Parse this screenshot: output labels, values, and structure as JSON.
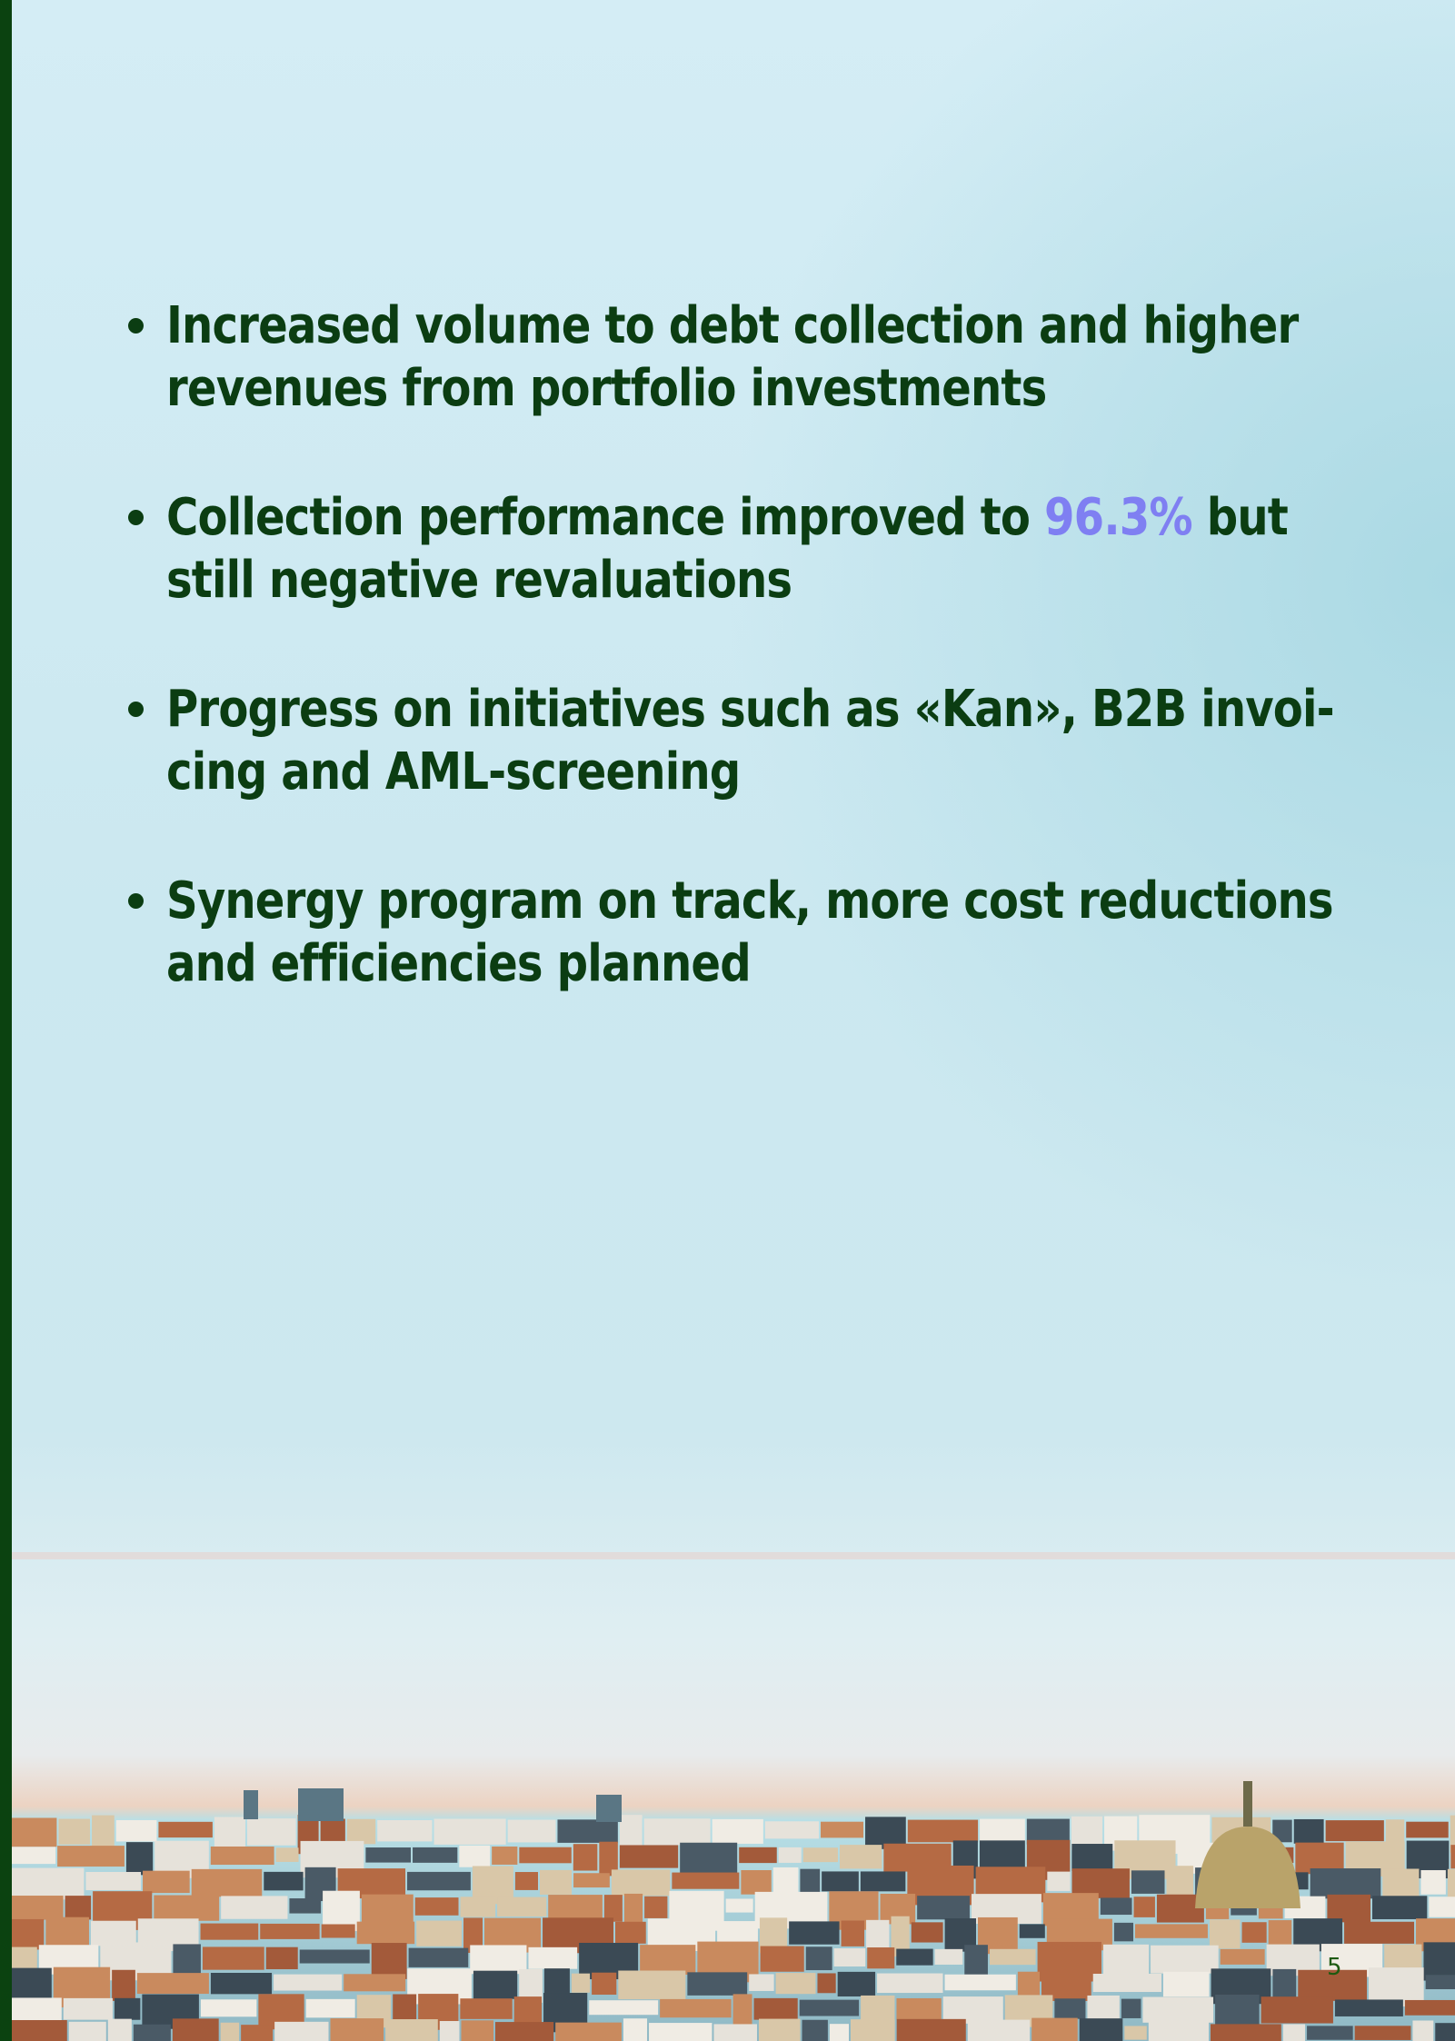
{
  "bullets": [
    {
      "lines": [
        [
          "Increased volume to debt collection and higher"
        ],
        [
          "revenues from portfolio investments"
        ]
      ]
    },
    {
      "lines": [
        [
          "Collection performance improved to ",
          "96.3%",
          " but"
        ],
        [
          "still negative revaluations"
        ]
      ]
    },
    {
      "lines": [
        [
          "Progress on initiatives such as «Kan», B2B invoi-"
        ],
        [
          "cing and AML-screening"
        ]
      ]
    },
    {
      "lines": [
        [
          "Synergy program on track, more cost reductions"
        ],
        [
          "and efficiencies planned"
        ]
      ]
    }
  ],
  "page_number": "5"
}
